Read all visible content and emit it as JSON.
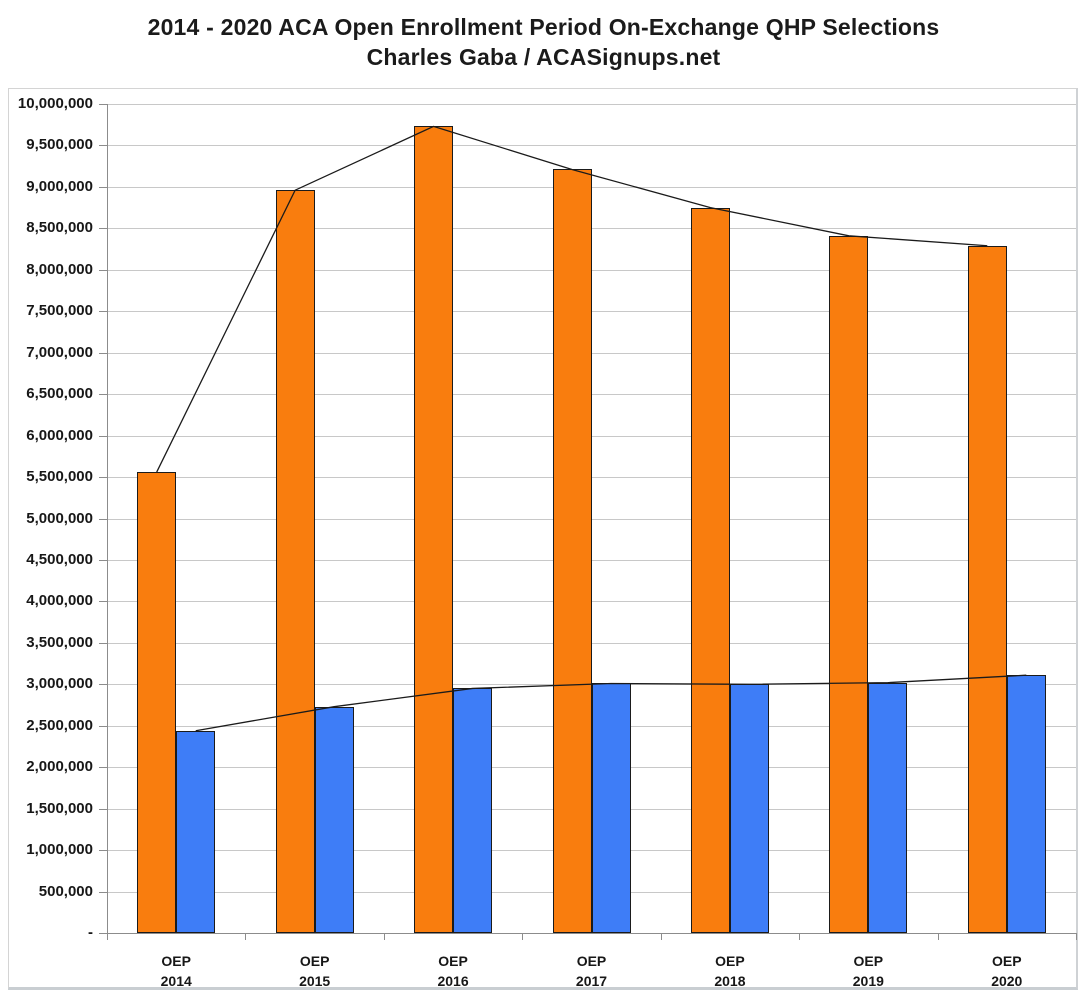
{
  "chart_data": {
    "type": "bar",
    "title": "2014 - 2020 ACA Open Enrollment Period On-Exchange QHP Selections",
    "subtitle": "Charles Gaba / ACASignups.net",
    "categories": [
      "2014",
      "2015",
      "2016",
      "2017",
      "2018",
      "2019",
      "2020"
    ],
    "category_prefix": "OEP",
    "series": [
      {
        "name": "orange",
        "color": "#F97D0E",
        "values": [
          5560000,
          8960000,
          9730000,
          9210000,
          8750000,
          8410000,
          8290000
        ]
      },
      {
        "name": "blue",
        "color": "#3E7DF7",
        "values": [
          2440000,
          2730000,
          2950000,
          3010000,
          3000000,
          3020000,
          3110000
        ]
      }
    ],
    "trend_lines": true,
    "legend": "none",
    "grid": true,
    "ylim": [
      0,
      10000000
    ],
    "ytick_step": 500000,
    "ytick_labels": [
      "10,000,000",
      "9,500,000",
      "9,000,000",
      "8,500,000",
      "8,000,000",
      "7,500,000",
      "7,000,000",
      "6,500,000",
      "6,000,000",
      "5,500,000",
      "5,000,000",
      "4,500,000",
      "4,000,000",
      "3,500,000",
      "3,000,000",
      "2,500,000",
      "2,000,000",
      "1,500,000",
      "1,000,000",
      "500,000",
      "-"
    ]
  },
  "colors": {
    "grid": "#C8C8C8",
    "axis": "#8C8C8C",
    "bar_border": "#1B1B1B",
    "trend_line": "#1B1B1B",
    "frame_border": "#D4D4D4",
    "text": "#171717"
  }
}
